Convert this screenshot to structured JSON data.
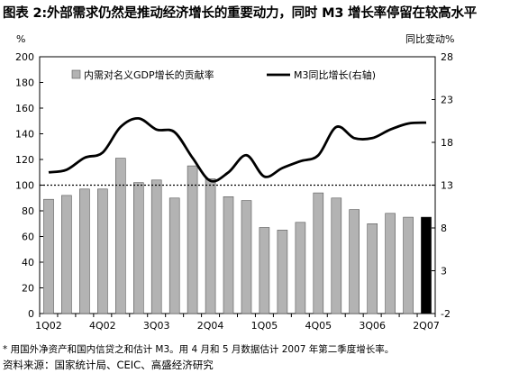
{
  "figure": {
    "title_prefix": "图表 2:",
    "title": "外部需求仍然是推动经济增长的重要动力，同时 M3 增长率停留在较高水平"
  },
  "footnote": {
    "note": "* 用国外净资产和国内信贷之和估计 M3。用 4 月和 5 月数据估计 2007 年第二季度增长率。",
    "source": "资料来源：国家统计局、CEIC、高盛经济研究"
  },
  "chart_data": {
    "type": "bar",
    "categories": [
      "1Q02",
      "2Q02",
      "3Q02",
      "4Q02",
      "1Q03",
      "2Q03",
      "3Q03",
      "4Q03",
      "1Q04",
      "2Q04",
      "3Q04",
      "4Q04",
      "1Q05",
      "2Q05",
      "3Q05",
      "4Q05",
      "1Q06",
      "2Q06",
      "3Q06",
      "4Q06",
      "1Q07",
      "2Q07"
    ],
    "x_tick_labels": [
      "1Q02",
      "4Q02",
      "3Q03",
      "2Q04",
      "1Q05",
      "4Q05",
      "3Q06",
      "2Q07"
    ],
    "x_tick_every": 3,
    "series": [
      {
        "name": "内需对名义GDP增长的贡献率",
        "kind": "bar",
        "axis": "left",
        "values": [
          89,
          92,
          97,
          97,
          121,
          102,
          104,
          90,
          115,
          105,
          91,
          88,
          67,
          65,
          71,
          94,
          90,
          81,
          70,
          78,
          75,
          75
        ],
        "highlight_last": true
      },
      {
        "name": "M3同比增长(右轴)",
        "kind": "line",
        "axis": "right",
        "values": [
          14.5,
          14.8,
          16.2,
          16.8,
          19.8,
          20.8,
          19.5,
          19.2,
          16.2,
          13.5,
          14.5,
          16.5,
          14.0,
          15.0,
          15.8,
          16.5,
          19.8,
          18.5,
          18.5,
          19.5,
          20.2,
          20.3
        ]
      }
    ],
    "reference_line": {
      "axis": "left",
      "value": 100,
      "style": "dotted"
    },
    "y_left": {
      "label": "%",
      "ylim": [
        0,
        200
      ],
      "ticks": [
        0,
        20,
        40,
        60,
        80,
        100,
        120,
        140,
        160,
        180,
        200
      ]
    },
    "y_right": {
      "label": "同比变动%",
      "ylim": [
        -2,
        28
      ],
      "ticks": [
        -2,
        3,
        8,
        13,
        18,
        23,
        28
      ]
    },
    "legend": {
      "placement": "top",
      "entries": [
        "内需对名义GDP增长的贡献率",
        "M3同比增长(右轴)"
      ]
    },
    "grid": false,
    "colors": {
      "bar": "#b3b3b3",
      "bar_stroke": "#555555",
      "bar_highlight": "#000000",
      "line": "#000000",
      "plot_bg": "#ffffff"
    }
  }
}
